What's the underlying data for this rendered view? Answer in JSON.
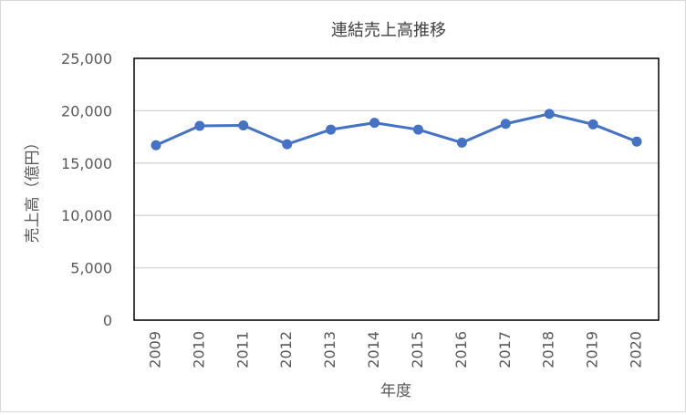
{
  "chart_data": {
    "type": "line",
    "title": "連結売上高推移",
    "xlabel": "年度",
    "ylabel": "売上高（億円）",
    "categories": [
      "2009",
      "2010",
      "2011",
      "2012",
      "2013",
      "2014",
      "2015",
      "2016",
      "2017",
      "2018",
      "2019",
      "2020"
    ],
    "series": [
      {
        "values": [
          16700,
          18550,
          18600,
          16800,
          18200,
          18850,
          18200,
          16950,
          18750,
          19700,
          18700,
          17050
        ]
      }
    ],
    "ylim": [
      0,
      25000
    ],
    "yticks": [
      0,
      5000,
      10000,
      15000,
      20000,
      25000
    ],
    "ytick_labels": [
      "0",
      "5,000",
      "10,000",
      "15,000",
      "20,000",
      "25,000"
    ],
    "grid": true,
    "legend": "none",
    "colors": {
      "line": "#4472C4",
      "grid": "#d9d9d9",
      "plot_border": "#000000",
      "text": "#595959",
      "title": "#404040"
    }
  }
}
